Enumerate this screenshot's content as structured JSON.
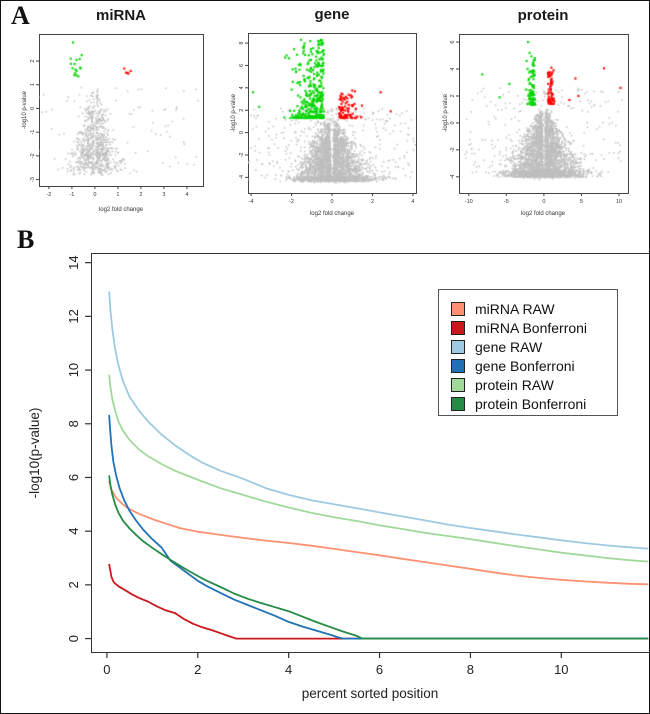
{
  "figure": {
    "panel_a_label": "A",
    "panel_b_label": "B"
  },
  "colors": {
    "up_red": "#FF0000",
    "down_green": "#00D500",
    "ns_gray": "#BEBEBE"
  },
  "chart_data": [
    {
      "type": "scatter",
      "variant": "volcano",
      "title": "miRNA",
      "xlabel": "log2 fold change",
      "ylabel": "-log10 p-value",
      "xlim": [
        -2.43,
        4.7
      ],
      "ylim": [
        -3.27,
        3.14
      ],
      "x_ticks": [
        -2,
        -1,
        0,
        1,
        2,
        3,
        4
      ],
      "y_ticks": [
        2,
        1,
        0,
        -1,
        -2,
        -3
      ],
      "point_colors": {
        "ns": "#BEBEBE",
        "down": "#00D500",
        "up": "#FF0000"
      },
      "counts": {
        "ns": 880,
        "down": 16,
        "up": 5
      },
      "sim": {
        "seed": 7,
        "core_n": 750,
        "bias": 0.5,
        "y_top": 0.85,
        "y_bot": -2.7,
        "y_noise": 0.25,
        "w0": 0.1,
        "w1": 1.15,
        "gap": 0.05,
        "plate_n": 0,
        "plate_w": 0,
        "plate_y": 0,
        "plate_h": 0,
        "out_n": 130,
        "out_w": 4.5,
        "out_ymax": 0.9,
        "down": {
          "n": 13,
          "x_base": -0.55,
          "x_spread": 0.55,
          "x_clamp": -1.8,
          "y_min": 1.35,
          "y_pow": 1.6,
          "y_span": 0.9,
          "extras": [
            [
              -0.95,
              2.78
            ],
            [
              -1.05,
              2.1
            ],
            [
              -0.8,
              2.05
            ]
          ]
        },
        "up": {
          "n": 5,
          "x_base": 1.15,
          "x_spread": 0.45,
          "x_clamp": 1.95,
          "y_min": 1.42,
          "y_pow": 1.4,
          "y_span": 0.3,
          "extras": []
        }
      }
    },
    {
      "type": "scatter",
      "variant": "volcano",
      "title": "gene",
      "xlabel": "log2 fold change",
      "ylabel": "-log10 p-value",
      "xlim": [
        -4.15,
        4.15
      ],
      "ylim": [
        -5.4,
        8.9
      ],
      "x_ticks": [
        -4,
        -2,
        0,
        2,
        4
      ],
      "y_ticks": [
        8,
        6,
        4,
        2,
        0,
        -2,
        -4
      ],
      "point_colors": {
        "ns": "#BEBEBE",
        "down": "#00D500",
        "up": "#FF0000"
      },
      "counts": {
        "ns": 3350,
        "down": 340,
        "up": 95
      },
      "sim": {
        "seed": 11,
        "core_n": 2400,
        "bias": 0.5,
        "y_top": 1.25,
        "y_bot": -4.25,
        "y_noise": 0.3,
        "w0": 0.2,
        "w1": 1.7,
        "gap": 0.1,
        "plate_n": 500,
        "plate_w": 2.2,
        "plate_y": -4.25,
        "plate_h": 0.45,
        "out_n": 450,
        "out_w": 4.6,
        "out_ymax": 2.2,
        "down": {
          "n": 338,
          "x_base": -0.4,
          "x_spread": 1.5,
          "x_clamp": -4.1,
          "y_min": 1.3,
          "y_pow": 2.2,
          "y_span": 7.0,
          "extras": [
            [
              -3.9,
              3.6
            ],
            [
              -3.6,
              2.3
            ]
          ]
        },
        "up": {
          "n": 93,
          "x_base": 0.35,
          "x_spread": 1.0,
          "x_clamp": 3.1,
          "y_min": 1.3,
          "y_pow": 2.4,
          "y_span": 2.5,
          "extras": [
            [
              2.4,
              3.6
            ],
            [
              2.9,
              1.9
            ]
          ]
        }
      }
    },
    {
      "type": "scatter",
      "variant": "volcano",
      "title": "protein",
      "xlabel": "log2 fold change",
      "ylabel": "-log10 p-value",
      "xlim": [
        -11.3,
        11.2
      ],
      "ylim": [
        -5.2,
        6.6
      ],
      "x_ticks": [
        -10,
        -5,
        0,
        5,
        10
      ],
      "y_ticks": [
        6,
        4,
        2,
        0,
        -2,
        -4
      ],
      "point_colors": {
        "ns": "#BEBEBE",
        "down": "#00D500",
        "up": "#FF0000"
      },
      "counts": {
        "ns": 3300,
        "down": 85,
        "up": 70
      },
      "sim": {
        "seed": 23,
        "core_n": 2400,
        "bias": 0.55,
        "y_top": 1.1,
        "y_bot": -3.9,
        "y_noise": 0.3,
        "w0": 0.3,
        "w1": 5.2,
        "gap": 0.18,
        "plate_n": 650,
        "plate_w": 6.0,
        "plate_y": -3.9,
        "plate_h": 0.5,
        "out_n": 260,
        "out_w": 10.5,
        "out_ymax": 2.6,
        "down": {
          "n": 79,
          "x_base": -1.2,
          "x_spread": 1.0,
          "x_clamp": -3.4,
          "y_min": 1.35,
          "y_pow": 1.9,
          "y_span": 3.6,
          "extras": [
            [
              -2.1,
              6.0
            ],
            [
              -1.9,
              5.2
            ],
            [
              -2.3,
              4.6
            ],
            [
              -8.2,
              3.6
            ],
            [
              -4.6,
              2.9
            ],
            [
              -5.9,
              1.9
            ]
          ]
        },
        "up": {
          "n": 63,
          "x_base": 0.55,
          "x_spread": 0.8,
          "x_clamp": 2.4,
          "y_min": 1.4,
          "y_pow": 1.9,
          "y_span": 2.5,
          "extras": [
            [
              1.0,
              4.1
            ],
            [
              1.3,
              3.9
            ],
            [
              4.2,
              3.3
            ],
            [
              8.0,
              4.05
            ],
            [
              10.2,
              2.6
            ],
            [
              4.6,
              2.0
            ],
            [
              3.4,
              1.7
            ]
          ]
        }
      }
    },
    {
      "type": "line",
      "title": "",
      "xlabel": "percent sorted position",
      "ylabel": "-log10(p-value)",
      "xlim": [
        -0.35,
        11.93
      ],
      "ylim": [
        -0.5,
        14.36
      ],
      "x_ticks": [
        0,
        2,
        4,
        6,
        8,
        10
      ],
      "y_ticks": [
        0,
        2,
        4,
        6,
        8,
        10,
        12,
        14
      ],
      "grid": false,
      "legend_position": "top-right",
      "series": [
        {
          "name": "miRNA RAW",
          "color": "#FC9272",
          "points": [
            [
              0.05,
              5.85
            ],
            [
              0.1,
              5.55
            ],
            [
              0.2,
              5.25
            ],
            [
              0.35,
              5.0
            ],
            [
              0.5,
              4.82
            ],
            [
              0.7,
              4.65
            ],
            [
              1.0,
              4.45
            ],
            [
              1.3,
              4.28
            ],
            [
              1.6,
              4.12
            ],
            [
              2.0,
              3.98
            ],
            [
              2.5,
              3.86
            ],
            [
              3.0,
              3.75
            ],
            [
              3.5,
              3.65
            ],
            [
              4.0,
              3.56
            ],
            [
              4.5,
              3.46
            ],
            [
              5.0,
              3.34
            ],
            [
              5.5,
              3.22
            ],
            [
              6.0,
              3.1
            ],
            [
              6.5,
              2.97
            ],
            [
              7.0,
              2.85
            ],
            [
              7.5,
              2.72
            ],
            [
              8.0,
              2.6
            ],
            [
              8.5,
              2.47
            ],
            [
              9.0,
              2.35
            ],
            [
              9.5,
              2.26
            ],
            [
              10.0,
              2.19
            ],
            [
              10.5,
              2.13
            ],
            [
              11.0,
              2.08
            ],
            [
              11.5,
              2.04
            ],
            [
              11.9,
              2.02
            ]
          ]
        },
        {
          "name": "miRNA Bonferroni",
          "color": "#CB181D",
          "points": [
            [
              0.05,
              2.75
            ],
            [
              0.08,
              2.5
            ],
            [
              0.1,
              2.3
            ],
            [
              0.15,
              2.1
            ],
            [
              0.25,
              1.95
            ],
            [
              0.4,
              1.8
            ],
            [
              0.55,
              1.65
            ],
            [
              0.7,
              1.52
            ],
            [
              0.9,
              1.38
            ],
            [
              1.1,
              1.2
            ],
            [
              1.3,
              1.05
            ],
            [
              1.5,
              0.95
            ],
            [
              1.7,
              0.72
            ],
            [
              1.9,
              0.55
            ],
            [
              2.1,
              0.42
            ],
            [
              2.3,
              0.32
            ],
            [
              2.5,
              0.2
            ],
            [
              2.7,
              0.08
            ],
            [
              2.85,
              0.0
            ],
            [
              11.9,
              0.0
            ]
          ]
        },
        {
          "name": "gene RAW",
          "color": "#9ECAE1",
          "points": [
            [
              0.05,
              12.9
            ],
            [
              0.08,
              12.2
            ],
            [
              0.12,
              11.5
            ],
            [
              0.18,
              10.8
            ],
            [
              0.25,
              10.2
            ],
            [
              0.35,
              9.6
            ],
            [
              0.5,
              9.0
            ],
            [
              0.7,
              8.5
            ],
            [
              0.9,
              8.1
            ],
            [
              1.2,
              7.6
            ],
            [
              1.5,
              7.2
            ],
            [
              1.8,
              6.85
            ],
            [
              2.1,
              6.55
            ],
            [
              2.5,
              6.25
            ],
            [
              3.0,
              5.95
            ],
            [
              3.5,
              5.6
            ],
            [
              4.0,
              5.35
            ],
            [
              4.5,
              5.15
            ],
            [
              5.0,
              5.0
            ],
            [
              5.5,
              4.85
            ],
            [
              6.0,
              4.7
            ],
            [
              6.5,
              4.55
            ],
            [
              7.0,
              4.4
            ],
            [
              7.5,
              4.25
            ],
            [
              8.0,
              4.12
            ],
            [
              8.5,
              4.0
            ],
            [
              9.0,
              3.88
            ],
            [
              9.5,
              3.77
            ],
            [
              10.0,
              3.66
            ],
            [
              10.5,
              3.56
            ],
            [
              11.0,
              3.47
            ],
            [
              11.5,
              3.4
            ],
            [
              11.9,
              3.35
            ]
          ]
        },
        {
          "name": "gene Bonferroni",
          "color": "#2171B5",
          "points": [
            [
              0.05,
              8.3
            ],
            [
              0.07,
              7.8
            ],
            [
              0.1,
              7.2
            ],
            [
              0.14,
              6.6
            ],
            [
              0.2,
              6.1
            ],
            [
              0.28,
              5.6
            ],
            [
              0.38,
              5.15
            ],
            [
              0.5,
              4.75
            ],
            [
              0.65,
              4.38
            ],
            [
              0.8,
              4.05
            ],
            [
              1.0,
              3.7
            ],
            [
              1.2,
              3.4
            ],
            [
              1.4,
              2.9
            ],
            [
              1.6,
              2.65
            ],
            [
              1.8,
              2.4
            ],
            [
              2.0,
              2.15
            ],
            [
              2.2,
              1.95
            ],
            [
              2.5,
              1.7
            ],
            [
              2.8,
              1.45
            ],
            [
              3.1,
              1.25
            ],
            [
              3.4,
              1.05
            ],
            [
              3.7,
              0.85
            ],
            [
              4.0,
              0.62
            ],
            [
              4.3,
              0.45
            ],
            [
              4.6,
              0.3
            ],
            [
              4.9,
              0.15
            ],
            [
              5.1,
              0.04
            ],
            [
              5.2,
              0.0
            ],
            [
              11.9,
              0.0
            ]
          ]
        },
        {
          "name": "protein RAW",
          "color": "#A1D99B",
          "points": [
            [
              0.05,
              9.8
            ],
            [
              0.08,
              9.35
            ],
            [
              0.12,
              8.9
            ],
            [
              0.18,
              8.5
            ],
            [
              0.25,
              8.1
            ],
            [
              0.35,
              7.75
            ],
            [
              0.5,
              7.4
            ],
            [
              0.7,
              7.05
            ],
            [
              0.9,
              6.8
            ],
            [
              1.2,
              6.5
            ],
            [
              1.5,
              6.25
            ],
            [
              1.8,
              6.05
            ],
            [
              2.1,
              5.85
            ],
            [
              2.5,
              5.6
            ],
            [
              3.0,
              5.35
            ],
            [
              3.5,
              5.1
            ],
            [
              4.0,
              4.88
            ],
            [
              4.5,
              4.68
            ],
            [
              5.0,
              4.52
            ],
            [
              5.5,
              4.38
            ],
            [
              6.0,
              4.22
            ],
            [
              6.5,
              4.08
            ],
            [
              7.0,
              3.94
            ],
            [
              7.5,
              3.82
            ],
            [
              8.0,
              3.7
            ],
            [
              8.5,
              3.57
            ],
            [
              9.0,
              3.44
            ],
            [
              9.5,
              3.32
            ],
            [
              10.0,
              3.2
            ],
            [
              10.5,
              3.1
            ],
            [
              11.0,
              3.0
            ],
            [
              11.5,
              2.92
            ],
            [
              11.9,
              2.87
            ]
          ]
        },
        {
          "name": "protein Bonferroni",
          "color": "#238B45",
          "points": [
            [
              0.05,
              6.05
            ],
            [
              0.08,
              5.7
            ],
            [
              0.12,
              5.35
            ],
            [
              0.18,
              5.0
            ],
            [
              0.25,
              4.7
            ],
            [
              0.35,
              4.4
            ],
            [
              0.5,
              4.1
            ],
            [
              0.65,
              3.85
            ],
            [
              0.8,
              3.62
            ],
            [
              1.0,
              3.38
            ],
            [
              1.2,
              3.15
            ],
            [
              1.4,
              2.93
            ],
            [
              1.6,
              2.72
            ],
            [
              1.8,
              2.52
            ],
            [
              2.0,
              2.33
            ],
            [
              2.2,
              2.15
            ],
            [
              2.5,
              1.92
            ],
            [
              2.8,
              1.68
            ],
            [
              3.1,
              1.48
            ],
            [
              3.4,
              1.32
            ],
            [
              3.7,
              1.17
            ],
            [
              4.0,
              1.02
            ],
            [
              4.3,
              0.82
            ],
            [
              4.6,
              0.62
            ],
            [
              4.9,
              0.44
            ],
            [
              5.2,
              0.26
            ],
            [
              5.5,
              0.1
            ],
            [
              5.62,
              0.0
            ],
            [
              11.9,
              0.0
            ]
          ]
        }
      ]
    }
  ]
}
